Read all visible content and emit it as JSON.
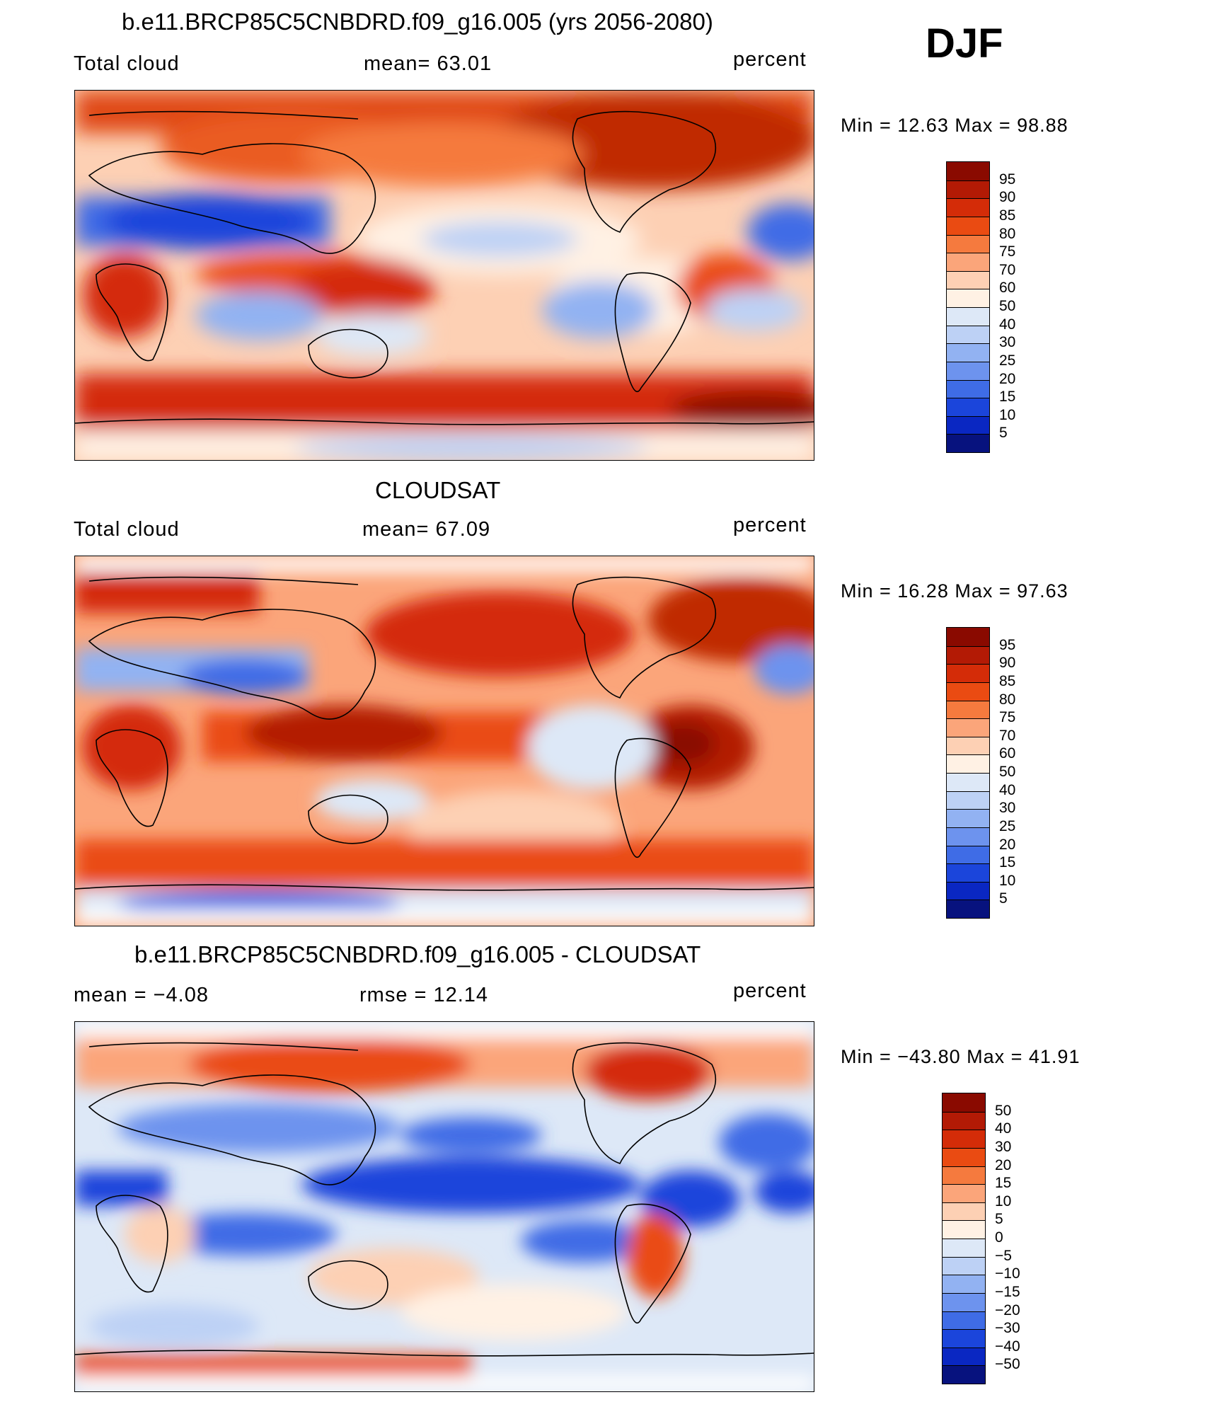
{
  "season": "DJF",
  "panels": [
    {
      "id": "model",
      "title": "b.e11.BRCP85C5CNBDRD.f09_g16.005 (yrs 2056-2080)",
      "left_label": "Total cloud",
      "mid_label": "mean=   63.01",
      "units": "percent",
      "minmax": "Min =    12.63  Max =    98.88",
      "colorbar": {
        "labels": [
          "95",
          "90",
          "85",
          "80",
          "75",
          "70",
          "60",
          "50",
          "40",
          "30",
          "25",
          "20",
          "15",
          "10",
          "5"
        ],
        "colors": [
          "#8a0a00",
          "#b31a05",
          "#d42c08",
          "#ea4b12",
          "#f57a3e",
          "#fba57a",
          "#fdd0b4",
          "#fff1e4",
          "#dde8f7",
          "#bdd1f5",
          "#92b2f2",
          "#6d93ee",
          "#3f6ce6",
          "#1b45db",
          "#0a27c2",
          "#07127e"
        ]
      }
    },
    {
      "id": "obs",
      "title": "CLOUDSAT",
      "left_label": "Total cloud",
      "mid_label": "mean=   67.09",
      "units": "percent",
      "minmax": "Min =    16.28  Max =    97.63",
      "colorbar": {
        "labels": [
          "95",
          "90",
          "85",
          "80",
          "75",
          "70",
          "60",
          "50",
          "40",
          "30",
          "25",
          "20",
          "15",
          "10",
          "5"
        ],
        "colors": [
          "#8a0a00",
          "#b31a05",
          "#d42c08",
          "#ea4b12",
          "#f57a3e",
          "#fba57a",
          "#fdd0b4",
          "#fff1e4",
          "#dde8f7",
          "#bdd1f5",
          "#92b2f2",
          "#6d93ee",
          "#3f6ce6",
          "#1b45db",
          "#0a27c2",
          "#07127e"
        ]
      }
    },
    {
      "id": "diff",
      "title": "b.e11.BRCP85C5CNBDRD.f09_g16.005 - CLOUDSAT",
      "left_label": "mean =   −4.08",
      "mid_label": "rmse =   12.14",
      "units": "percent",
      "minmax": "Min = −43.80  Max =    41.91",
      "colorbar": {
        "labels": [
          "50",
          "40",
          "30",
          "20",
          "15",
          "10",
          "5",
          "0",
          "−5",
          "−10",
          "−15",
          "−20",
          "−30",
          "−40",
          "−50"
        ],
        "colors": [
          "#8a0a00",
          "#b31a05",
          "#d42c08",
          "#ea4b12",
          "#f57a3e",
          "#fba57a",
          "#fdd0b4",
          "#fff1e4",
          "#dde8f7",
          "#bdd1f5",
          "#92b2f2",
          "#6d93ee",
          "#3f6ce6",
          "#1b45db",
          "#0a27c2",
          "#07127e"
        ]
      }
    }
  ]
}
